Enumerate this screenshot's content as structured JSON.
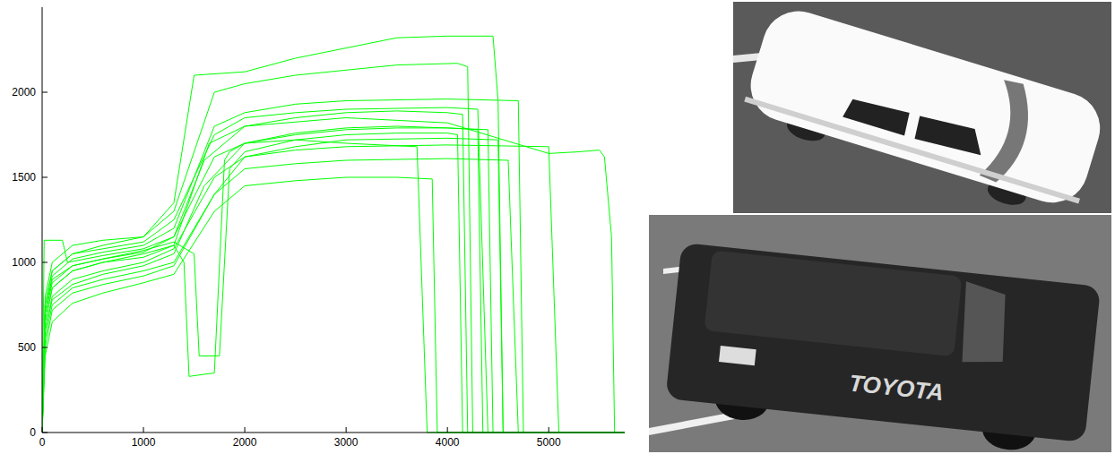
{
  "chart_data": {
    "type": "line",
    "color": "#00ff00",
    "grid": false,
    "xlim": [
      0,
      5750
    ],
    "xticks": [
      0,
      1000,
      2000,
      3000,
      4000,
      5000
    ],
    "ylim": [
      0,
      2500
    ],
    "yticks": [
      0,
      500,
      1000,
      1500,
      2000
    ],
    "series": [
      {
        "x": [
          0,
          30,
          100,
          300,
          600,
          1000,
          1300,
          1600,
          2000,
          2500,
          3000,
          3500,
          4000,
          4300,
          4350,
          5750
        ],
        "values": [
          0,
          600,
          780,
          870,
          930,
          980,
          1050,
          1450,
          1700,
          1760,
          1790,
          1800,
          1790,
          1780,
          0,
          0
        ]
      },
      {
        "x": [
          0,
          30,
          100,
          300,
          600,
          1000,
          1300,
          1600,
          2000,
          2500,
          3000,
          3500,
          4000,
          4150,
          4200,
          5750
        ],
        "values": [
          0,
          700,
          900,
          980,
          1020,
          1060,
          1150,
          1600,
          1800,
          1850,
          1880,
          1890,
          1880,
          1870,
          0,
          0
        ]
      },
      {
        "x": [
          0,
          30,
          100,
          300,
          600,
          1000,
          1300,
          1700,
          2000,
          2500,
          3000,
          3500,
          3850,
          3900,
          5750
        ],
        "values": [
          0,
          450,
          650,
          760,
          820,
          880,
          930,
          1300,
          1450,
          1480,
          1500,
          1500,
          1490,
          0,
          0
        ]
      },
      {
        "x": [
          0,
          30,
          100,
          300,
          600,
          1000,
          1300,
          1500,
          2000,
          2500,
          3000,
          3500,
          4000,
          4450,
          4500,
          4550,
          5750
        ],
        "values": [
          0,
          800,
          1000,
          1100,
          1130,
          1150,
          1350,
          2100,
          2120,
          2200,
          2260,
          2320,
          2330,
          2330,
          1950,
          0,
          0
        ]
      },
      {
        "x": [
          0,
          30,
          100,
          300,
          600,
          1000,
          1300,
          1700,
          2000,
          2500,
          3000,
          3500,
          4100,
          4200,
          4250,
          5750
        ],
        "values": [
          0,
          750,
          950,
          1050,
          1100,
          1150,
          1300,
          2000,
          2050,
          2100,
          2130,
          2160,
          2170,
          2150,
          0,
          0
        ]
      },
      {
        "x": [
          0,
          30,
          100,
          300,
          600,
          1000,
          1300,
          1650,
          2000,
          3000,
          4000,
          5000,
          5300,
          5500,
          5550,
          5620,
          5650,
          5750
        ],
        "values": [
          0,
          650,
          850,
          950,
          1000,
          1030,
          1100,
          1700,
          1800,
          1850,
          1820,
          1640,
          1650,
          1660,
          1620,
          1150,
          0,
          0
        ]
      },
      {
        "x": [
          0,
          30,
          100,
          300,
          600,
          1000,
          1300,
          1400,
          1450,
          1700,
          1800,
          1850,
          2000,
          2500,
          3000,
          3500,
          4000,
          4400,
          4450,
          5750
        ],
        "values": [
          0,
          650,
          850,
          950,
          1000,
          1050,
          1100,
          1000,
          330,
          350,
          1600,
          1650,
          1700,
          1750,
          1780,
          1790,
          1790,
          1780,
          0,
          0
        ]
      },
      {
        "x": [
          0,
          30,
          100,
          300,
          600,
          1000,
          1300,
          1500,
          1550,
          1750,
          1850,
          2000,
          2500,
          3000,
          3500,
          4000,
          4100,
          4150,
          5750
        ],
        "values": [
          0,
          700,
          880,
          980,
          1020,
          1070,
          1120,
          1050,
          450,
          450,
          1550,
          1650,
          1720,
          1750,
          1760,
          1760,
          1750,
          0,
          0
        ]
      },
      {
        "x": [
          0,
          30,
          100,
          300,
          600,
          1000,
          1300,
          1700,
          2000,
          2500,
          3000,
          4000,
          5000,
          5100,
          5750
        ],
        "values": [
          0,
          600,
          800,
          900,
          950,
          1000,
          1080,
          1500,
          1620,
          1660,
          1680,
          1690,
          1680,
          0,
          0
        ]
      },
      {
        "x": [
          0,
          30,
          100,
          300,
          600,
          1000,
          1300,
          1700,
          2000,
          2500,
          3000,
          4000,
          4600,
          4700,
          5750
        ],
        "values": [
          0,
          550,
          750,
          850,
          900,
          950,
          1000,
          1400,
          1550,
          1580,
          1600,
          1610,
          1600,
          0,
          0
        ]
      },
      {
        "x": [
          0,
          30,
          100,
          300,
          600,
          1000,
          1300,
          1700,
          2000,
          2500,
          3000,
          4000,
          4700,
          4750,
          5750
        ],
        "values": [
          0,
          700,
          920,
          1020,
          1060,
          1100,
          1200,
          1800,
          1880,
          1930,
          1950,
          1960,
          1950,
          0,
          0
        ]
      },
      {
        "x": [
          0,
          20,
          200,
          250,
          600,
          1000,
          1300,
          1700,
          2000,
          2500,
          3000,
          3700,
          3800,
          5750
        ],
        "values": [
          0,
          1130,
          1130,
          1000,
          1040,
          1080,
          1150,
          1620,
          1700,
          1720,
          1700,
          1680,
          0,
          0
        ]
      },
      {
        "x": [
          0,
          30,
          100,
          300,
          600,
          1000,
          1300,
          1700,
          2000,
          2500,
          3000,
          4000,
          4300,
          4400,
          5750
        ],
        "values": [
          0,
          750,
          950,
          1050,
          1080,
          1120,
          1250,
          1750,
          1850,
          1880,
          1900,
          1910,
          1900,
          0,
          0
        ]
      },
      {
        "x": [
          0,
          30,
          100,
          300,
          600,
          1000,
          1300,
          1700,
          2000,
          2500,
          3000,
          4000,
          4500,
          4550,
          5750
        ],
        "values": [
          0,
          500,
          720,
          820,
          870,
          920,
          980,
          1400,
          1620,
          1680,
          1720,
          1730,
          1720,
          0,
          0
        ]
      }
    ]
  },
  "photo_texts": [
    "TOYOTA"
  ]
}
